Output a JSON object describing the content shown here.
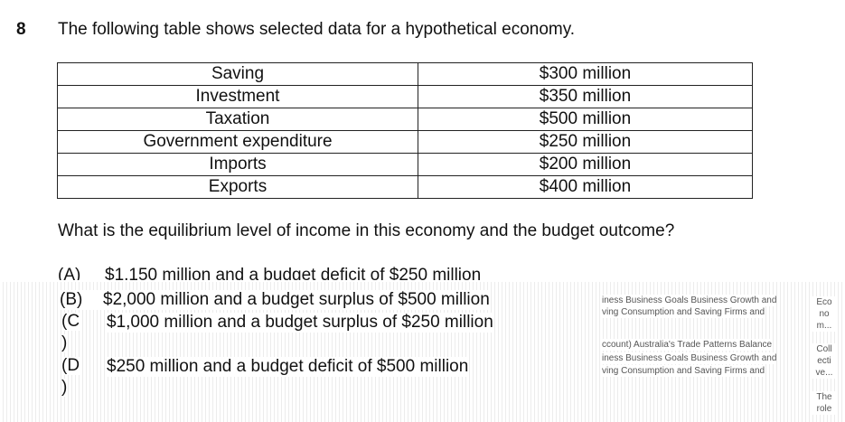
{
  "question": {
    "number": "8",
    "intro": "The following table shows selected data for a hypothetical economy.",
    "prompt": "What is the equilibrium level of income in this economy and the budget outcome?"
  },
  "table": [
    {
      "label": "Saving",
      "value": "$300 million"
    },
    {
      "label": "Investment",
      "value": "$350 million"
    },
    {
      "label": "Taxation",
      "value": "$500 million"
    },
    {
      "label": "Government expenditure",
      "value": "$250 million"
    },
    {
      "label": "Imports",
      "value": "$200 million"
    },
    {
      "label": "Exports",
      "value": "$400 million"
    }
  ],
  "options": [
    {
      "letter": "(A)",
      "text": "$1,150 million and a budget deficit of $250 million"
    },
    {
      "letter": "(B)",
      "text": "$2,000 million and a budget surplus of $500 million"
    },
    {
      "letter_open": "(C",
      "letter_close": ")",
      "text": "$1,000 million and a budget surplus of $250 million"
    },
    {
      "letter_open": "(D",
      "letter_close": ")",
      "text": "$250 million and a budget deficit of $500 million"
    }
  ],
  "overlay": {
    "line1": "iness  Business Goals  Business Growth and",
    "line2": "ving  Consumption and Saving  Firms and",
    "line3": "ccount)  Australia's Trade Patterns  Balance",
    "line4": "iness  Business Goals  Business Growth and",
    "line5": "ving  Consumption and Saving  Firms and",
    "side1": "Eco no m...",
    "side2": "Coll ecti ve...",
    "side3": "The role"
  }
}
